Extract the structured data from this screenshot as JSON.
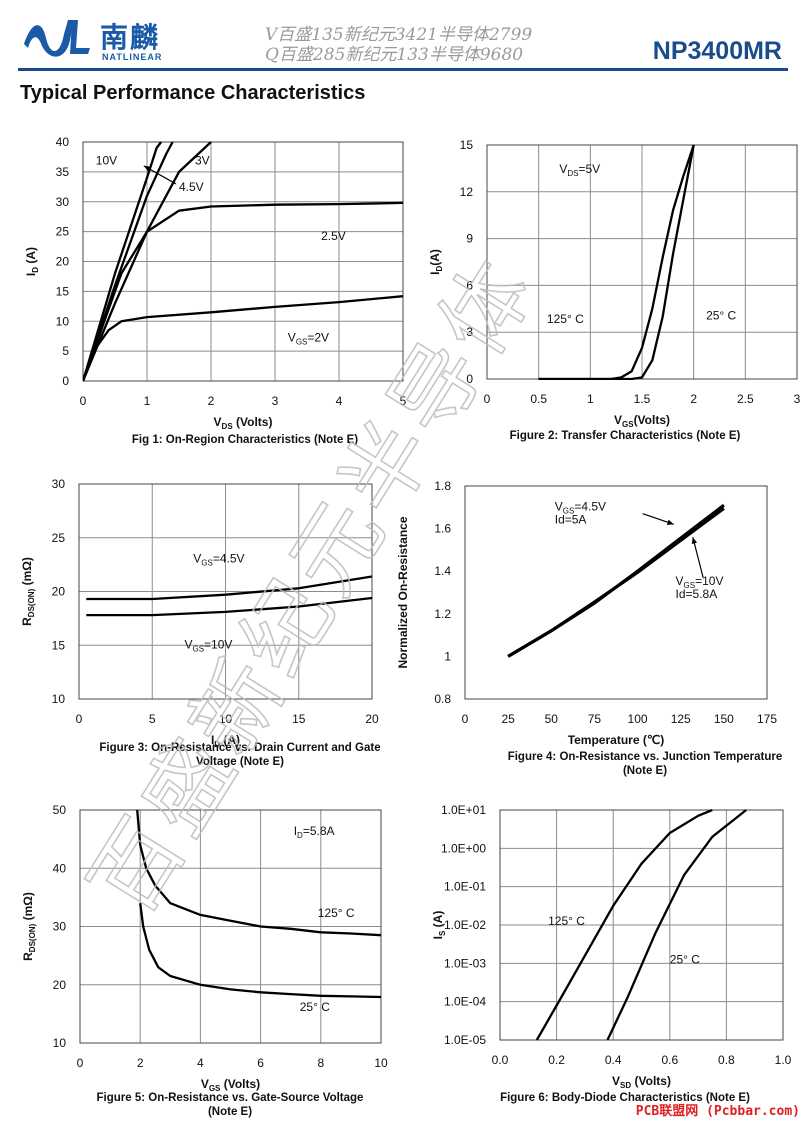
{
  "header": {
    "brand_cn": "南麟",
    "brand_en": "NATLINEAR",
    "line1": "V百盛135新纪元3421半导体2799",
    "line2": "Q百盛285新纪元133半导体9680",
    "part_number": "NP3400MR",
    "accent_color": "#1a4c8c"
  },
  "section_title": "Typical Performance Characteristics",
  "watermark": "百盛新纪元半导体",
  "footer": "PCB联盟网 (Pcbbar.com)",
  "figures": [
    {
      "caption_lines": [
        "Fig 1: On-Region Characteristics (Note E)"
      ],
      "chart_data": {
        "type": "line",
        "xlabel": "V",
        "xlabel_sub": "DS",
        "xlabel_tail": " (Volts)",
        "ylabel": "I",
        "ylabel_sub": "D",
        "ylabel_tail": " (A)",
        "xlim": [
          0,
          5
        ],
        "ylim": [
          0,
          40
        ],
        "xticks": [
          "0",
          "1",
          "2",
          "3",
          "4",
          "5"
        ],
        "yticks": [
          "0",
          "5",
          "10",
          "15",
          "20",
          "25",
          "30",
          "35",
          "40"
        ],
        "grid": true,
        "series": [
          {
            "name": "10V",
            "points": [
              [
                0,
                0
              ],
              [
                0.5,
                18
              ],
              [
                1,
                34
              ],
              [
                1.15,
                39
              ],
              [
                1.22,
                40
              ]
            ]
          },
          {
            "name": "4.5V",
            "points": [
              [
                0,
                0
              ],
              [
                0.5,
                16
              ],
              [
                1,
                31
              ],
              [
                1.3,
                38
              ],
              [
                1.4,
                40
              ]
            ]
          },
          {
            "name": "3V",
            "points": [
              [
                0,
                0
              ],
              [
                0.5,
                13
              ],
              [
                1,
                25
              ],
              [
                1.5,
                35
              ],
              [
                2,
                40
              ]
            ]
          },
          {
            "name": "2.5V",
            "points": [
              [
                0,
                0
              ],
              [
                0.3,
                9
              ],
              [
                0.6,
                18
              ],
              [
                1,
                25
              ],
              [
                1.5,
                28.5
              ],
              [
                2,
                29.2
              ],
              [
                3,
                29.5
              ],
              [
                4,
                29.6
              ],
              [
                5,
                29.8
              ]
            ]
          },
          {
            "name": "VGS=2V",
            "points": [
              [
                0,
                0
              ],
              [
                0.2,
                5.5
              ],
              [
                0.4,
                8.5
              ],
              [
                0.6,
                10
              ],
              [
                1,
                10.7
              ],
              [
                2,
                11.5
              ],
              [
                3,
                12.4
              ],
              [
                4,
                13.2
              ],
              [
                5,
                14.2
              ]
            ]
          }
        ],
        "annotations": [
          {
            "text": "10V",
            "x": 0.2,
            "y": 36.2
          },
          {
            "text": "3V",
            "x": 1.75,
            "y": 36.2
          },
          {
            "text": "4.5V",
            "x": 1.5,
            "y": 31.8
          },
          {
            "text": "2.5V",
            "x": 3.72,
            "y": 23.6
          },
          {
            "text": "V",
            "sub": "GS",
            "tail": "=2V",
            "x": 3.2,
            "y": 6.6
          }
        ],
        "arrows": [
          {
            "from": [
              1.45,
              33
            ],
            "to": [
              0.95,
              36
            ]
          }
        ]
      }
    },
    {
      "caption_lines": [
        "Figure 2: Transfer Characteristics (Note E)"
      ],
      "chart_data": {
        "type": "line",
        "xlabel": "V",
        "xlabel_sub": "GS",
        "xlabel_tail": "(Volts)",
        "ylabel": "I",
        "ylabel_sub": "D",
        "ylabel_tail": "(A)",
        "xlim": [
          0,
          3
        ],
        "ylim": [
          0,
          15
        ],
        "xticks": [
          "0",
          "0.5",
          "1",
          "1.5",
          "2",
          "2.5",
          "3"
        ],
        "yticks": [
          "0",
          "3",
          "6",
          "9",
          "12",
          "15"
        ],
        "grid": true,
        "series": [
          {
            "name": "125° C",
            "points": [
              [
                0.5,
                0
              ],
              [
                1,
                0
              ],
              [
                1.2,
                0
              ],
              [
                1.3,
                0.1
              ],
              [
                1.4,
                0.5
              ],
              [
                1.5,
                2
              ],
              [
                1.6,
                4.5
              ],
              [
                1.7,
                7.8
              ],
              [
                1.8,
                10.8
              ],
              [
                1.9,
                13
              ],
              [
                2,
                15
              ]
            ]
          },
          {
            "name": "25° C",
            "points": [
              [
                0.5,
                0
              ],
              [
                1,
                0
              ],
              [
                1.4,
                0
              ],
              [
                1.5,
                0.1
              ],
              [
                1.6,
                1.2
              ],
              [
                1.7,
                4
              ],
              [
                1.8,
                8
              ],
              [
                1.9,
                11.5
              ],
              [
                2,
                15
              ]
            ]
          }
        ],
        "annotations": [
          {
            "text": "V",
            "sub": "DS",
            "tail": "=5V",
            "x": 0.7,
            "y": 13.2
          },
          {
            "text": "125° C",
            "x": 0.58,
            "y": 3.6
          },
          {
            "text": "25° C",
            "x": 2.12,
            "y": 3.8
          }
        ],
        "arrows": []
      }
    },
    {
      "caption_lines": [
        "Figure 3: On-Resistance vs. Drain Current and Gate",
        "Voltage (Note E)"
      ],
      "chart_data": {
        "type": "line",
        "xlabel": "I",
        "xlabel_sub": "D",
        "xlabel_tail": " (A)",
        "ylabel": "R",
        "ylabel_sub": "DS(ON)",
        "ylabel_tail": " (mΩ)",
        "xlim": [
          0,
          20
        ],
        "ylim": [
          10,
          30
        ],
        "xticks": [
          "0",
          "5",
          "10",
          "15",
          "20"
        ],
        "yticks": [
          "10",
          "15",
          "20",
          "25",
          "30"
        ],
        "grid": true,
        "series": [
          {
            "name": "VGS=4.5V",
            "points": [
              [
                0.5,
                19.3
              ],
              [
                5,
                19.3
              ],
              [
                10,
                19.7
              ],
              [
                15,
                20.3
              ],
              [
                20,
                21.4
              ]
            ]
          },
          {
            "name": "VGS=10V",
            "points": [
              [
                0.5,
                17.8
              ],
              [
                5,
                17.8
              ],
              [
                10,
                18.1
              ],
              [
                15,
                18.6
              ],
              [
                20,
                19.4
              ]
            ]
          }
        ],
        "annotations": [
          {
            "text": "V",
            "sub": "GS",
            "tail": "=4.5V",
            "x": 7.8,
            "y": 22.7
          },
          {
            "text": "V",
            "sub": "GS",
            "tail": "=10V",
            "x": 7.2,
            "y": 14.7
          }
        ],
        "arrows": []
      }
    },
    {
      "caption_lines": [
        "Figure 4: On-Resistance vs. Junction Temperature",
        "(Note E)"
      ],
      "chart_data": {
        "type": "line",
        "xlabel": "Temperature (℃)",
        "xlabel_sub": "",
        "xlabel_tail": "",
        "ylabel": "Normalized On-Resistance",
        "ylabel_sub": "",
        "ylabel_tail": "",
        "xlim": [
          0,
          175
        ],
        "ylim": [
          0.8,
          1.8
        ],
        "xticks": [
          "0",
          "25",
          "50",
          "75",
          "100",
          "125",
          "150",
          "175"
        ],
        "yticks": [
          "0.8",
          "1",
          "1.2",
          "1.4",
          "1.6",
          "1.8"
        ],
        "grid": false,
        "series": [
          {
            "name": "VGS=4.5V Id=5A",
            "points": [
              [
                25,
                1.0
              ],
              [
                50,
                1.12
              ],
              [
                75,
                1.25
              ],
              [
                100,
                1.4
              ],
              [
                125,
                1.555
              ],
              [
                150,
                1.71
              ]
            ]
          },
          {
            "name": "VGS=10V Id=5.8A",
            "points": [
              [
                25,
                1.0
              ],
              [
                50,
                1.12
              ],
              [
                75,
                1.255
              ],
              [
                100,
                1.395
              ],
              [
                125,
                1.545
              ],
              [
                150,
                1.695
              ]
            ]
          }
        ],
        "annotations": [
          {
            "text": "V",
            "sub": "GS",
            "tail": "=4.5V",
            "x": 52,
            "y": 1.685
          },
          {
            "text": "Id=5A",
            "x": 52,
            "y": 1.625
          },
          {
            "text": "V",
            "sub": "GS",
            "tail": "=10V",
            "x": 122,
            "y": 1.335
          },
          {
            "text": "Id=5.8A",
            "x": 122,
            "y": 1.275
          }
        ],
        "arrows": [
          {
            "from": [
              103,
              1.67
            ],
            "to": [
              121,
              1.62
            ]
          },
          {
            "from": [
              138,
              1.37
            ],
            "to": [
              132,
              1.56
            ]
          }
        ]
      }
    },
    {
      "caption_lines": [
        "Figure 5: On-Resistance vs. Gate-Source Voltage",
        "(Note E)"
      ],
      "chart_data": {
        "type": "line",
        "xlabel": "V",
        "xlabel_sub": "GS",
        "xlabel_tail": " (Volts)",
        "ylabel": "R",
        "ylabel_sub": "DS(ON)",
        "ylabel_tail": " (mΩ)",
        "xlim": [
          0,
          10
        ],
        "ylim": [
          10,
          50
        ],
        "xticks": [
          "0",
          "2",
          "4",
          "6",
          "8",
          "10"
        ],
        "yticks": [
          "10",
          "20",
          "30",
          "40",
          "50"
        ],
        "grid": true,
        "series": [
          {
            "name": "125° C",
            "points": [
              [
                1.9,
                50
              ],
              [
                2,
                44
              ],
              [
                2.2,
                40
              ],
              [
                2.5,
                37
              ],
              [
                3,
                34
              ],
              [
                4,
                32
              ],
              [
                5,
                31
              ],
              [
                6,
                30
              ],
              [
                7,
                29.6
              ],
              [
                8,
                29
              ],
              [
                9,
                28.8
              ],
              [
                10,
                28.5
              ]
            ]
          },
          {
            "name": "25° C",
            "points": [
              [
                2,
                34
              ],
              [
                2.1,
                30
              ],
              [
                2.3,
                26
              ],
              [
                2.6,
                23
              ],
              [
                3,
                21.5
              ],
              [
                4,
                20
              ],
              [
                5,
                19.2
              ],
              [
                6,
                18.7
              ],
              [
                7,
                18.4
              ],
              [
                8,
                18.1
              ],
              [
                9,
                18
              ],
              [
                10,
                17.9
              ]
            ]
          }
        ],
        "annotations": [
          {
            "text": "I",
            "sub": "D",
            "tail": "=5.8A",
            "x": 7.1,
            "y": 45.7
          },
          {
            "text": "125° C",
            "x": 7.9,
            "y": 31.6
          },
          {
            "text": "25° C",
            "x": 7.3,
            "y": 15.5
          }
        ],
        "arrows": []
      }
    },
    {
      "caption_lines": [
        "Figure 6: Body-Diode Characteristics (Note E)"
      ],
      "chart_data": {
        "type": "line",
        "scale_y": "log",
        "xlabel": "V",
        "xlabel_sub": "SD",
        "xlabel_tail": " (Volts)",
        "ylabel": "I",
        "ylabel_sub": "S",
        "ylabel_tail": " (A)",
        "xlim": [
          0,
          1
        ],
        "ylim": [
          -5,
          1
        ],
        "xticks": [
          "0.0",
          "0.2",
          "0.4",
          "0.6",
          "0.8",
          "1.0"
        ],
        "yticks": [
          "1.0E-05",
          "1.0E-04",
          "1.0E-03",
          "1.0E-02",
          "1.0E-01",
          "1.0E+00",
          "1.0E+01"
        ],
        "grid": true,
        "series": [
          {
            "name": "125° C",
            "points": [
              [
                0.13,
                -5
              ],
              [
                0.2,
                -4.1
              ],
              [
                0.3,
                -2.8
              ],
              [
                0.4,
                -1.5
              ],
              [
                0.5,
                -0.4
              ],
              [
                0.6,
                0.4
              ],
              [
                0.7,
                0.85
              ],
              [
                0.75,
                1
              ]
            ]
          },
          {
            "name": "25° C",
            "points": [
              [
                0.38,
                -5
              ],
              [
                0.45,
                -3.9
              ],
              [
                0.55,
                -2.2
              ],
              [
                0.65,
                -0.7
              ],
              [
                0.75,
                0.3
              ],
              [
                0.87,
                1
              ]
            ]
          }
        ],
        "annotations": [
          {
            "text": "125° C",
            "x": 0.17,
            "y": -2
          },
          {
            "text": "25° C",
            "x": 0.6,
            "y": -3
          }
        ],
        "arrows": []
      }
    }
  ]
}
